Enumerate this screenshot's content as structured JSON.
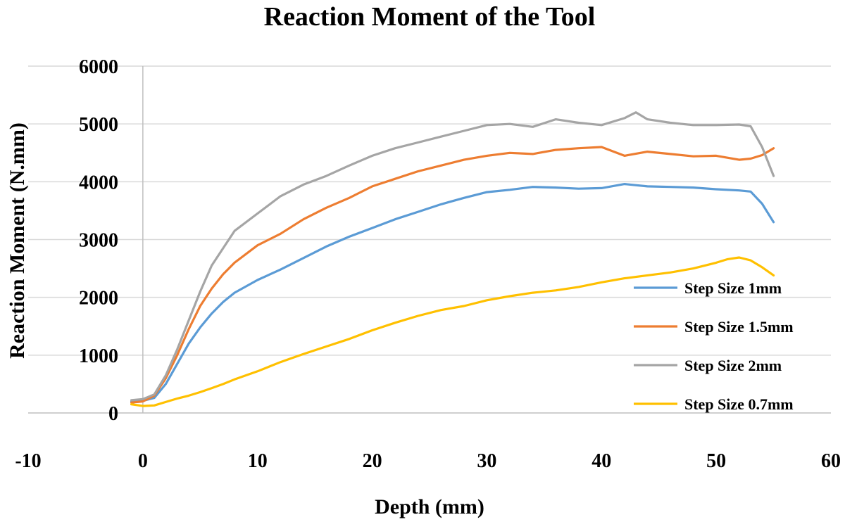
{
  "chart_data": {
    "type": "line",
    "title": "Reaction Moment of the Tool",
    "xlabel": "Depth (mm)",
    "ylabel": "Reaction Moment (N.mm)",
    "xlim": [
      -10,
      60
    ],
    "ylim": [
      0,
      6000
    ],
    "x_ticks": [
      -10,
      0,
      10,
      20,
      30,
      40,
      50,
      60
    ],
    "y_ticks": [
      0,
      1000,
      2000,
      3000,
      4000,
      5000,
      6000
    ],
    "grid": "horizontal",
    "legend_position": "bottom-right",
    "series": [
      {
        "name": "Step Size 1mm",
        "color": "#5b9bd5",
        "x": [
          -1,
          0,
          1,
          2,
          3,
          4,
          5,
          6,
          7,
          8,
          10,
          12,
          14,
          16,
          18,
          20,
          22,
          24,
          26,
          28,
          30,
          32,
          34,
          36,
          38,
          40,
          42,
          44,
          46,
          48,
          50,
          52,
          53,
          54,
          55
        ],
        "y": [
          200,
          210,
          260,
          500,
          850,
          1200,
          1480,
          1720,
          1920,
          2080,
          2300,
          2480,
          2680,
          2880,
          3050,
          3200,
          3350,
          3480,
          3610,
          3720,
          3820,
          3860,
          3910,
          3900,
          3880,
          3890,
          3960,
          3920,
          3910,
          3900,
          3870,
          3850,
          3830,
          3620,
          3300
        ]
      },
      {
        "name": "Step Size 1.5mm",
        "color": "#ed7d31",
        "x": [
          -1,
          0,
          1,
          2,
          3,
          4,
          5,
          6,
          7,
          8,
          10,
          12,
          14,
          16,
          18,
          20,
          22,
          24,
          26,
          28,
          30,
          32,
          34,
          36,
          38,
          40,
          42,
          44,
          46,
          48,
          50,
          52,
          53,
          54,
          55
        ],
        "y": [
          180,
          200,
          300,
          600,
          1000,
          1450,
          1850,
          2150,
          2400,
          2600,
          2900,
          3100,
          3350,
          3550,
          3720,
          3920,
          4050,
          4180,
          4280,
          4380,
          4450,
          4500,
          4480,
          4550,
          4580,
          4600,
          4450,
          4520,
          4480,
          4440,
          4450,
          4380,
          4400,
          4460,
          4580
        ]
      },
      {
        "name": "Step Size 2mm",
        "color": "#a5a5a5",
        "x": [
          -1,
          0,
          1,
          2,
          3,
          4,
          5,
          6,
          7,
          8,
          10,
          12,
          14,
          16,
          18,
          20,
          22,
          24,
          26,
          28,
          30,
          32,
          34,
          36,
          38,
          40,
          42,
          43,
          44,
          46,
          48,
          50,
          52,
          53,
          54,
          55
        ],
        "y": [
          220,
          240,
          320,
          650,
          1100,
          1600,
          2100,
          2550,
          2850,
          3150,
          3450,
          3750,
          3950,
          4100,
          4280,
          4450,
          4580,
          4680,
          4780,
          4880,
          4980,
          5000,
          4950,
          5080,
          5020,
          4980,
          5100,
          5200,
          5080,
          5020,
          4980,
          4980,
          4990,
          4960,
          4600,
          4100
        ]
      },
      {
        "name": "Step Size 0.7mm",
        "color": "#ffc000",
        "x": [
          -1,
          0,
          1,
          2,
          3,
          4,
          5,
          6,
          7,
          8,
          10,
          12,
          14,
          16,
          18,
          20,
          22,
          24,
          26,
          28,
          30,
          32,
          34,
          36,
          38,
          40,
          42,
          44,
          46,
          48,
          50,
          51,
          52,
          53,
          54,
          55
        ],
        "y": [
          150,
          120,
          130,
          190,
          250,
          300,
          360,
          430,
          500,
          580,
          720,
          880,
          1020,
          1150,
          1280,
          1430,
          1560,
          1680,
          1780,
          1850,
          1950,
          2020,
          2080,
          2120,
          2180,
          2260,
          2330,
          2380,
          2430,
          2500,
          2600,
          2660,
          2690,
          2640,
          2520,
          2380
        ]
      }
    ]
  }
}
